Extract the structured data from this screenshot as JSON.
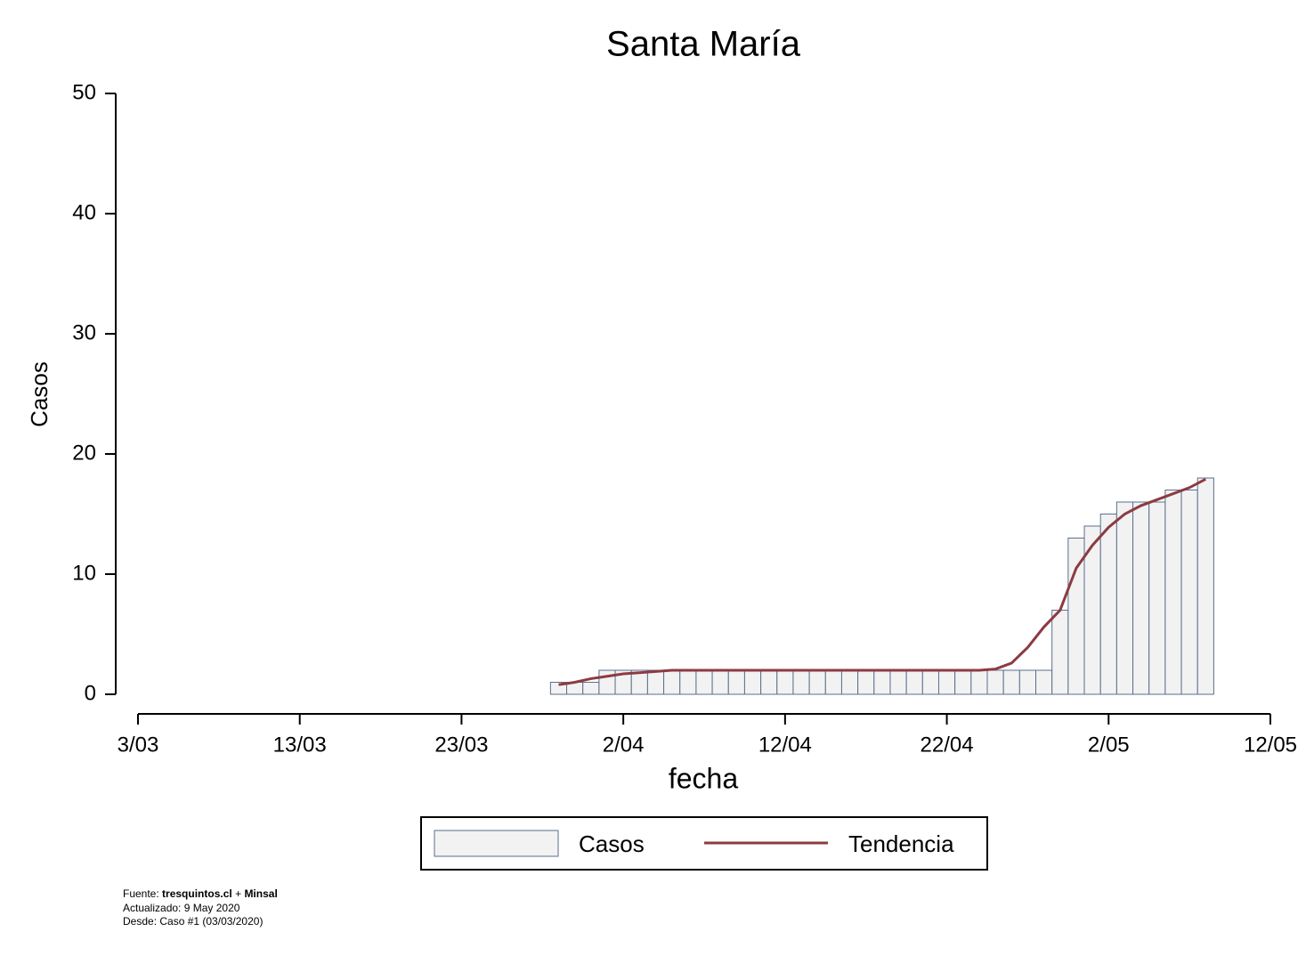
{
  "chart_data": {
    "type": "bar",
    "title": "Santa María",
    "x_label": "fecha",
    "y_label": "Casos",
    "x": [
      "29/03",
      "30/03",
      "31/03",
      "1/04",
      "2/04",
      "3/04",
      "4/04",
      "5/04",
      "6/04",
      "7/04",
      "8/04",
      "9/04",
      "10/04",
      "11/04",
      "12/04",
      "13/04",
      "14/04",
      "15/04",
      "16/04",
      "17/04",
      "18/04",
      "19/04",
      "20/04",
      "21/04",
      "22/04",
      "23/04",
      "24/04",
      "25/04",
      "26/04",
      "27/04",
      "28/04",
      "29/04",
      "30/04",
      "1/05",
      "2/05",
      "3/05",
      "4/05",
      "5/05",
      "6/05",
      "7/05",
      "8/05"
    ],
    "series": [
      {
        "name": "Casos",
        "type": "bar",
        "color": "#f2f2f2",
        "edge_color": "#5b6f8e",
        "values": [
          1,
          1,
          1,
          2,
          2,
          2,
          2,
          2,
          2,
          2,
          2,
          2,
          2,
          2,
          2,
          2,
          2,
          2,
          2,
          2,
          2,
          2,
          2,
          2,
          2,
          2,
          2,
          2,
          2,
          2,
          2,
          7,
          13,
          14,
          15,
          16,
          16,
          16,
          17,
          17,
          18
        ]
      },
      {
        "name": "Tendencia",
        "type": "line",
        "color": "#8c3b41",
        "values": [
          0.8,
          1.0,
          1.3,
          1.5,
          1.7,
          1.8,
          1.9,
          2.0,
          2.0,
          2.0,
          2.0,
          2.0,
          2.0,
          2.0,
          2.0,
          2.0,
          2.0,
          2.0,
          2.0,
          2.0,
          2.0,
          2.0,
          2.0,
          2.0,
          2.0,
          2.0,
          2.0,
          2.1,
          2.6,
          3.9,
          5.6,
          7.0,
          10.5,
          12.4,
          13.9,
          15.0,
          15.7,
          16.2,
          16.7,
          17.2,
          17.9
        ]
      }
    ],
    "xlim": [
      "3/03",
      "12/05"
    ],
    "xticks": [
      "3/03",
      "13/03",
      "23/03",
      "2/04",
      "12/04",
      "22/04",
      "2/05",
      "12/05"
    ],
    "ylim": [
      0,
      50
    ],
    "yticks": [
      0,
      10,
      20,
      30,
      40,
      50
    ],
    "grid": false,
    "legend": "bottom",
    "footnote": {
      "source_label": "Fuente:",
      "source_site": "tresquintos.cl",
      "source_sep": "+",
      "source_org": "Minsal",
      "updated": "Actualizado: 9 May 2020",
      "since": "Desde: Caso #1  (03/03/2020)"
    }
  }
}
